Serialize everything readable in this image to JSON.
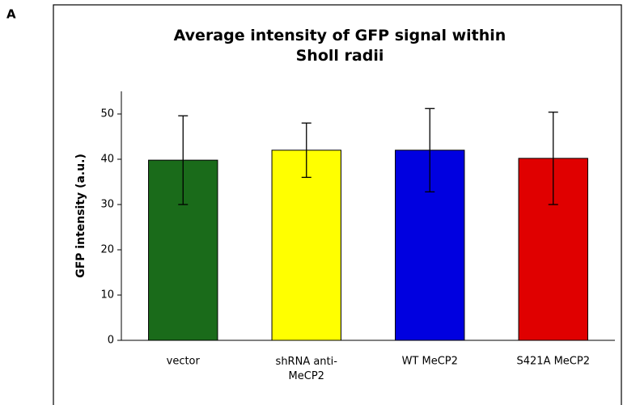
{
  "panel_label": "A",
  "chart_data": {
    "type": "bar",
    "title": "Average intensity of GFP signal within Sholl radii",
    "ylabel": "GFP intensity (a.u.)",
    "categories": [
      "vector",
      "shRNA anti-MeCP2",
      "WT MeCP2",
      "S421A MeCP2"
    ],
    "series": [
      {
        "values": [
          39.8,
          42,
          42,
          40.2
        ],
        "errors": [
          9.8,
          6,
          9.2,
          10.2
        ],
        "colors": [
          "#1a6b1a",
          "#ffff00",
          "#0000e0",
          "#e00000"
        ]
      }
    ],
    "ylim": [
      0,
      55
    ],
    "yticks": [
      0,
      10,
      20,
      30,
      40,
      50
    ],
    "grid": false
  }
}
